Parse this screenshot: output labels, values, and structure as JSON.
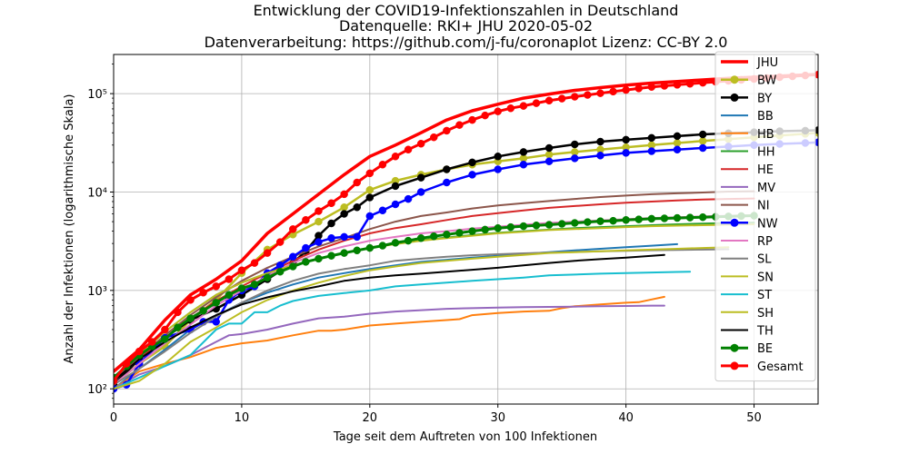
{
  "chart_data": {
    "type": "line",
    "title": [
      "Entwicklung der COVID19-Infektionszahlen in Deutschland",
      "Datenquelle: RKI+ JHU 2020-05-02",
      "Datenverarbeitung: https://github.com/j-fu/coronaplot  Lizenz: CC-BY 2.0"
    ],
    "xlabel": "Tage seit dem Auftreten von 100 Infektionen",
    "ylabel": "Anzahl der Infektionen (logarithmische Skala)",
    "xlim": [
      0,
      55
    ],
    "ylim": [
      70,
      250000
    ],
    "yscale": "log",
    "grid": true,
    "legend_position": "top-right",
    "xticks": [
      0,
      10,
      20,
      30,
      40,
      50
    ],
    "xtick_labels": [
      "0",
      "10",
      "20",
      "30",
      "40",
      "50"
    ],
    "yticks": [
      100,
      1000,
      10000,
      100000
    ],
    "ytick_labels": [
      "10²",
      "10³",
      "10⁴",
      "10⁵"
    ],
    "series": [
      {
        "name": "JHU",
        "color": "#ff0000",
        "marker": false,
        "width": 3.5,
        "x": [
          0,
          2,
          4,
          6,
          8,
          10,
          12,
          14,
          16,
          18,
          20,
          22,
          24,
          26,
          28,
          30,
          32,
          34,
          36,
          38,
          40,
          42,
          44,
          46,
          48,
          50,
          52,
          54,
          55
        ],
        "y": [
          150,
          250,
          500,
          900,
          1300,
          2000,
          3800,
          6000,
          9500,
          15000,
          23000,
          30000,
          40000,
          54000,
          67000,
          78000,
          90000,
          99000,
          108000,
          115000,
          122000,
          128000,
          133000,
          138000,
          143000,
          147000,
          151000,
          155000,
          157000
        ]
      },
      {
        "name": "BW",
        "color": "#bcbd22",
        "marker": true,
        "width": 2.5,
        "x": [
          0,
          2,
          4,
          6,
          8,
          10,
          12,
          14,
          16,
          18,
          20,
          22,
          24,
          26,
          28,
          30,
          32,
          34,
          36,
          38,
          40,
          42,
          44,
          46,
          48,
          50,
          52,
          54,
          55
        ],
        "y": [
          110,
          180,
          270,
          500,
          800,
          1500,
          2600,
          3700,
          5000,
          7000,
          10500,
          13000,
          15000,
          17000,
          19000,
          20500,
          22000,
          24000,
          25500,
          27000,
          28500,
          30000,
          31500,
          33000,
          34500,
          36000,
          37500,
          39000,
          40000
        ]
      },
      {
        "name": "BY",
        "color": "#000000",
        "marker": true,
        "width": 2.5,
        "x": [
          0,
          2,
          4,
          6,
          8,
          10,
          12,
          14,
          15,
          16,
          17,
          18,
          19,
          20,
          22,
          24,
          26,
          28,
          30,
          32,
          34,
          36,
          38,
          40,
          42,
          44,
          46,
          48,
          50,
          52,
          54,
          55
        ],
        "y": [
          110,
          200,
          330,
          500,
          650,
          900,
          1300,
          1900,
          2500,
          3600,
          4800,
          6000,
          7000,
          8800,
          11500,
          14000,
          17000,
          20000,
          23000,
          25500,
          28000,
          30500,
          32500,
          34000,
          35500,
          37000,
          38500,
          39500,
          40500,
          41500,
          42000,
          42500
        ]
      },
      {
        "name": "BB",
        "color": "#1f77b4",
        "marker": false,
        "width": 2,
        "x": [
          0,
          2,
          4,
          6,
          8,
          10,
          12,
          14,
          16,
          18,
          20,
          22,
          24,
          26,
          28,
          30,
          32,
          34,
          36,
          38,
          40,
          42,
          44
        ],
        "y": [
          100,
          160,
          250,
          400,
          550,
          750,
          950,
          1150,
          1350,
          1500,
          1650,
          1800,
          1950,
          2050,
          2150,
          2250,
          2350,
          2450,
          2550,
          2650,
          2750,
          2850,
          2950
        ]
      },
      {
        "name": "HB",
        "color": "#ff7f0e",
        "marker": false,
        "width": 2,
        "x": [
          0,
          2,
          4,
          6,
          8,
          10,
          12,
          14,
          16,
          17,
          18,
          20,
          22,
          24,
          26,
          27,
          28,
          30,
          32,
          34,
          35,
          36,
          38,
          40,
          41,
          42,
          43
        ],
        "y": [
          100,
          150,
          180,
          210,
          260,
          290,
          310,
          350,
          390,
          390,
          400,
          440,
          460,
          480,
          500,
          510,
          560,
          590,
          610,
          620,
          660,
          690,
          720,
          750,
          760,
          810,
          860
        ]
      },
      {
        "name": "HH",
        "color": "#2ca02c",
        "marker": false,
        "width": 2,
        "x": [
          0,
          2,
          4,
          6,
          8,
          10,
          12,
          14,
          16,
          18,
          20,
          22,
          24,
          26,
          28,
          30,
          32,
          34,
          36,
          38,
          40,
          42,
          44,
          46,
          48,
          50
        ],
        "y": [
          130,
          220,
          380,
          600,
          900,
          1200,
          1500,
          1800,
          2100,
          2400,
          2700,
          3000,
          3250,
          3450,
          3650,
          3850,
          4000,
          4150,
          4300,
          4400,
          4500,
          4600,
          4700,
          4780,
          4850,
          4900
        ]
      },
      {
        "name": "HE",
        "color": "#d62728",
        "marker": false,
        "width": 2,
        "x": [
          0,
          2,
          4,
          6,
          8,
          10,
          12,
          14,
          16,
          18,
          20,
          22,
          24,
          26,
          28,
          30,
          32,
          34,
          36,
          38,
          40,
          42,
          44,
          46,
          48,
          50
        ],
        "y": [
          120,
          200,
          330,
          520,
          780,
          1100,
          1500,
          2000,
          2600,
          3200,
          3800,
          4300,
          4700,
          5200,
          5700,
          6100,
          6500,
          6900,
          7200,
          7500,
          7800,
          8000,
          8200,
          8400,
          8500,
          8600
        ]
      },
      {
        "name": "MV",
        "color": "#9467bd",
        "marker": false,
        "width": 2,
        "x": [
          0,
          2,
          4,
          6,
          8,
          9,
          10,
          12,
          14,
          16,
          18,
          20,
          22,
          24,
          26,
          28,
          30,
          32,
          34,
          36,
          38,
          40,
          42,
          43
        ],
        "y": [
          100,
          140,
          170,
          220,
          300,
          350,
          360,
          400,
          460,
          520,
          540,
          580,
          610,
          630,
          650,
          660,
          670,
          675,
          680,
          685,
          690,
          695,
          700,
          700
        ]
      },
      {
        "name": "NI",
        "color": "#8c564b",
        "marker": false,
        "width": 2,
        "x": [
          0,
          2,
          4,
          6,
          8,
          10,
          12,
          14,
          16,
          18,
          20,
          22,
          24,
          26,
          28,
          30,
          32,
          34,
          36,
          38,
          40,
          42,
          44,
          46,
          48,
          50
        ],
        "y": [
          120,
          210,
          350,
          560,
          850,
          1250,
          1700,
          2200,
          2800,
          3400,
          4200,
          5000,
          5700,
          6200,
          6800,
          7300,
          7700,
          8100,
          8500,
          8900,
          9200,
          9500,
          9700,
          9900,
          10100,
          10200
        ]
      },
      {
        "name": "NW",
        "color": "#0000ff",
        "marker": true,
        "width": 2.5,
        "x": [
          0,
          1,
          2,
          4,
          6,
          7,
          8,
          9,
          10,
          11,
          12,
          13,
          14,
          15,
          16,
          17,
          18,
          19,
          20,
          21,
          22,
          23,
          24,
          26,
          28,
          30,
          32,
          34,
          36,
          38,
          40,
          42,
          44,
          46,
          48,
          50,
          52,
          54,
          55
        ],
        "y": [
          100,
          110,
          180,
          330,
          400,
          480,
          480,
          800,
          1000,
          1100,
          1500,
          1800,
          2200,
          2700,
          3100,
          3400,
          3500,
          3500,
          5700,
          6500,
          7500,
          8500,
          10000,
          12500,
          15000,
          17000,
          19000,
          20500,
          22000,
          23500,
          25000,
          26000,
          27000,
          28000,
          29000,
          30000,
          30800,
          31500,
          32000
        ]
      },
      {
        "name": "RP",
        "color": "#e377c2",
        "marker": false,
        "width": 2,
        "x": [
          0,
          2,
          4,
          6,
          8,
          10,
          12,
          14,
          16,
          18,
          20,
          22,
          24,
          26,
          28,
          30,
          32,
          34,
          36,
          38,
          40,
          42,
          44,
          46,
          48,
          50
        ],
        "y": [
          110,
          180,
          290,
          450,
          700,
          1000,
          1400,
          1900,
          2400,
          2800,
          3200,
          3500,
          3800,
          4000,
          4250,
          4450,
          4650,
          4850,
          5000,
          5150,
          5300,
          5450,
          5550,
          5650,
          5750,
          5800
        ]
      },
      {
        "name": "SL",
        "color": "#7f7f7f",
        "marker": false,
        "width": 2,
        "x": [
          0,
          2,
          4,
          6,
          8,
          10,
          12,
          14,
          16,
          18,
          20,
          22,
          24,
          26,
          28,
          30,
          32,
          34,
          36,
          38,
          40,
          42,
          44,
          46,
          48
        ],
        "y": [
          110,
          160,
          240,
          370,
          540,
          750,
          1000,
          1250,
          1480,
          1650,
          1800,
          2000,
          2100,
          2200,
          2280,
          2330,
          2380,
          2420,
          2460,
          2500,
          2530,
          2560,
          2580,
          2600,
          2620
        ]
      },
      {
        "name": "SN",
        "color": "#bcbd22",
        "marker": false,
        "width": 2,
        "x": [
          0,
          2,
          4,
          6,
          8,
          10,
          12,
          14,
          16,
          18,
          20,
          22,
          24,
          26,
          28,
          30,
          32,
          34,
          36,
          38,
          40,
          42,
          44,
          46,
          48,
          50
        ],
        "y": [
          130,
          220,
          380,
          600,
          900,
          1200,
          1500,
          1800,
          2100,
          2400,
          2700,
          2950,
          3200,
          3400,
          3600,
          3800,
          3950,
          4100,
          4200,
          4300,
          4400,
          4500,
          4550,
          4600,
          4650,
          4700
        ]
      },
      {
        "name": "ST",
        "color": "#17becf",
        "marker": false,
        "width": 2,
        "x": [
          0,
          2,
          4,
          6,
          8,
          9,
          10,
          11,
          12,
          13,
          14,
          15,
          16,
          18,
          20,
          22,
          24,
          26,
          28,
          30,
          32,
          34,
          36,
          38,
          40,
          42,
          44,
          45
        ],
        "y": [
          100,
          130,
          170,
          220,
          400,
          460,
          460,
          600,
          600,
          700,
          780,
          830,
          880,
          940,
          1000,
          1100,
          1150,
          1200,
          1250,
          1300,
          1350,
          1420,
          1450,
          1480,
          1500,
          1520,
          1540,
          1550
        ]
      },
      {
        "name": "SH",
        "color": "#bcbd22",
        "marker": false,
        "width": 2,
        "x": [
          0,
          2,
          4,
          6,
          8,
          10,
          12,
          14,
          16,
          18,
          20,
          22,
          24,
          26,
          28,
          30,
          32,
          34,
          36,
          38,
          40,
          42,
          44,
          46,
          48
        ],
        "y": [
          100,
          120,
          180,
          300,
          420,
          600,
          800,
          1000,
          1200,
          1400,
          1600,
          1750,
          1900,
          2000,
          2100,
          2200,
          2300,
          2400,
          2450,
          2500,
          2550,
          2600,
          2650,
          2700,
          2750
        ]
      },
      {
        "name": "TH",
        "color": "#000000",
        "marker": false,
        "width": 2,
        "x": [
          0,
          2,
          4,
          6,
          8,
          10,
          12,
          14,
          16,
          18,
          20,
          22,
          24,
          26,
          28,
          30,
          32,
          34,
          36,
          38,
          40,
          42,
          43
        ],
        "y": [
          120,
          200,
          300,
          420,
          560,
          720,
          850,
          980,
          1100,
          1250,
          1350,
          1420,
          1480,
          1550,
          1620,
          1700,
          1800,
          1900,
          2000,
          2080,
          2150,
          2250,
          2300
        ]
      },
      {
        "name": "BE",
        "color": "#008000",
        "marker": true,
        "width": 3,
        "x": [
          0,
          1,
          2,
          3,
          4,
          5,
          6,
          7,
          8,
          9,
          10,
          11,
          12,
          13,
          14,
          15,
          16,
          17,
          18,
          19,
          20,
          21,
          22,
          23,
          24,
          25,
          26,
          27,
          28,
          29,
          30,
          31,
          32,
          33,
          34,
          35,
          36,
          37,
          38,
          39,
          40,
          41,
          42,
          43,
          44,
          45,
          46,
          47,
          48,
          49,
          50
        ],
        "y": [
          130,
          170,
          220,
          270,
          320,
          420,
          520,
          620,
          750,
          900,
          1050,
          1150,
          1350,
          1550,
          1750,
          1950,
          2100,
          2250,
          2400,
          2550,
          2700,
          2850,
          3050,
          3200,
          3400,
          3550,
          3700,
          3850,
          4000,
          4150,
          4300,
          4400,
          4500,
          4580,
          4650,
          4750,
          4850,
          4950,
          5050,
          5100,
          5200,
          5270,
          5350,
          5400,
          5450,
          5500,
          5550,
          5600,
          5650,
          5700,
          5750
        ]
      },
      {
        "name": "Gesamt",
        "color": "#ff0000",
        "marker": true,
        "width": 3,
        "x": [
          0,
          1,
          2,
          3,
          4,
          5,
          6,
          7,
          8,
          9,
          10,
          11,
          12,
          13,
          14,
          15,
          16,
          17,
          18,
          19,
          20,
          21,
          22,
          23,
          24,
          25,
          26,
          27,
          28,
          29,
          30,
          31,
          32,
          33,
          34,
          35,
          36,
          37,
          38,
          39,
          40,
          41,
          42,
          43,
          44,
          45,
          46,
          47,
          48,
          49,
          50,
          51,
          52,
          53,
          54,
          55
        ],
        "y": [
          120,
          180,
          240,
          300,
          400,
          600,
          800,
          950,
          1100,
          1300,
          1600,
          1900,
          2400,
          3100,
          4200,
          5200,
          6400,
          7700,
          9500,
          12500,
          15500,
          19000,
          23000,
          27000,
          31000,
          36000,
          42000,
          48000,
          54000,
          60000,
          66000,
          71000,
          75000,
          80000,
          85000,
          89000,
          93000,
          97000,
          101000,
          105000,
          109000,
          113000,
          117000,
          120000,
          123000,
          126000,
          129000,
          132000,
          135000,
          138000,
          141000,
          144000,
          147000,
          150000,
          153000,
          156000
        ]
      }
    ]
  }
}
